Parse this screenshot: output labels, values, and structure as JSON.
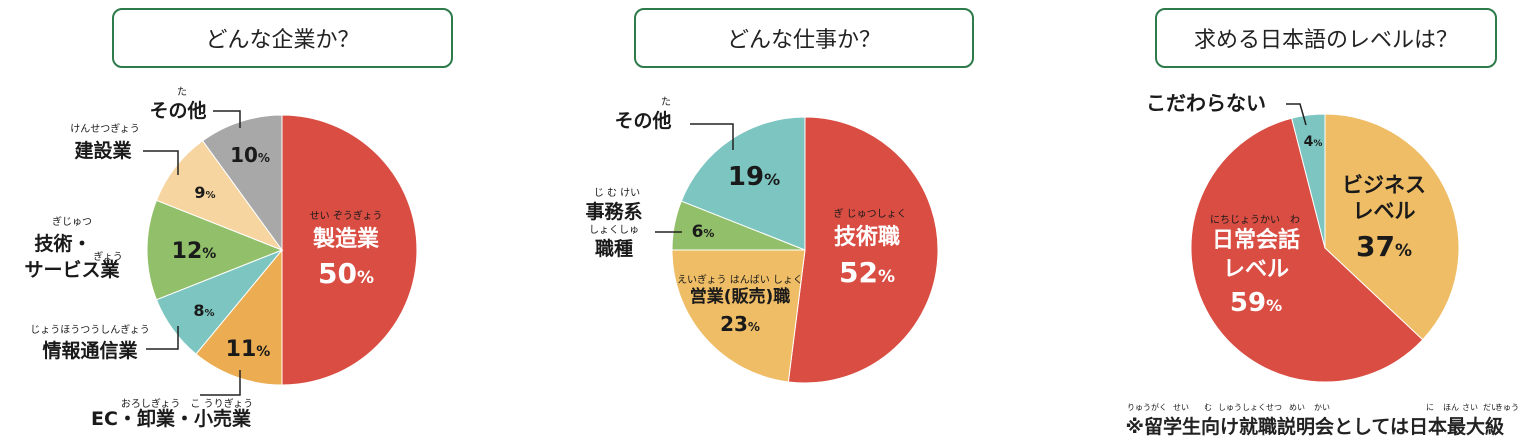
{
  "colors": {
    "red": "#d94d43",
    "orange": "#ecad52",
    "teal": "#7cc5c0",
    "green": "#92bf6a",
    "peach": "#f6d5a0",
    "gray": "#a8a8a8",
    "yellow": "#eebd66",
    "frame": "#2d7a4b"
  },
  "footnote": "※留学生向け就職説明会としては日本最大級",
  "footnote_ruby": [
    "りゅうがく",
    "せい",
    "む",
    "しゅうしょくせつ",
    "めい",
    "かい",
    "に",
    "ほん",
    "さい",
    "だい",
    "きゅう"
  ],
  "chart_data": [
    {
      "type": "pie",
      "title": "どんな企業か？",
      "slices": [
        {
          "label": "製造業",
          "value": 50,
          "display": "50%",
          "ruby": "せい ぞうぎょう",
          "color": "#d94d43"
        },
        {
          "label": "EC・卸業・小売業",
          "value": 11,
          "display": "11%",
          "ruby": "おろしぎょう　こ うりぎょう",
          "color": "#ecad52"
        },
        {
          "label": "情報通信業",
          "value": 8,
          "display": "8%",
          "ruby": "じょうほうつうしんぎょう",
          "color": "#7cc5c0"
        },
        {
          "label": "技術・サービス業",
          "value": 12,
          "display": "12%",
          "ruby": "ぎじゅつ",
          "ruby2": "ぎょう",
          "color": "#92bf6a"
        },
        {
          "label": "建設業",
          "value": 9,
          "display": "9%",
          "ruby": "けんせつぎょう",
          "color": "#f6d5a0"
        },
        {
          "label": "その他",
          "value": 10,
          "display": "10%",
          "ruby": "た",
          "color": "#a8a8a8"
        }
      ]
    },
    {
      "type": "pie",
      "title": "どんな仕事か？",
      "slices": [
        {
          "label": "技術職",
          "value": 52,
          "display": "52%",
          "ruby": "ぎ じゅつしょく",
          "color": "#d94d43"
        },
        {
          "label": "営業(販売)職",
          "value": 23,
          "display": "23%",
          "ruby": "えいぎょう はんばい しょく",
          "color": "#eebd66"
        },
        {
          "label": "事務系職種",
          "value": 6,
          "display": "6%",
          "ruby": "じ む けい",
          "ruby2": "しょくしゅ",
          "color": "#92bf6a"
        },
        {
          "label": "その他",
          "value": 19,
          "display": "19%",
          "ruby": "た",
          "color": "#7cc5c0"
        }
      ]
    },
    {
      "type": "pie",
      "title": "求める日本語のレベルは？",
      "slices": [
        {
          "label": "ビジネスレベル",
          "value": 37,
          "display": "37%",
          "color": "#eebd66"
        },
        {
          "label": "日常会話レベル",
          "value": 59,
          "display": "59%",
          "ruby": "にちじょうかい　わ",
          "color": "#d94d43"
        },
        {
          "label": "こだわらない",
          "value": 4,
          "display": "4%",
          "color": "#7cc5c0"
        }
      ]
    }
  ]
}
